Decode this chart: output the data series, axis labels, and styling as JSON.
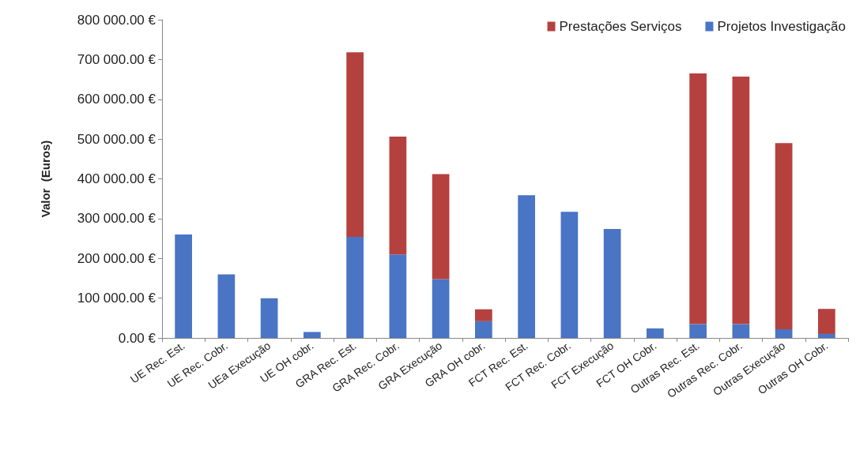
{
  "chart_data": {
    "type": "bar",
    "stacked": true,
    "ylabel": "Valor  (Euros)",
    "categories": [
      "UE Rec. Est.",
      "UE Rec. Cobr.",
      "UEa Execução",
      "UE OH cobr.",
      "GRA Rec. Est.",
      "GRA Rec. Cobr.",
      "GRA Execução",
      "GRA OH cobr.",
      "FCT Rec. Est.",
      "FCT Rec. Cobr.",
      "FCT Execução",
      "FCT OH Cobr.",
      "Outras Rec. Est.",
      "Outras Rec. Cobr.",
      "Outras Execução",
      "Outras OH Cobr."
    ],
    "series": [
      {
        "name": "Projetos Investigação",
        "color": "#4a74c4",
        "values": [
          260000,
          160000,
          100000,
          15000,
          254000,
          210000,
          148000,
          42000,
          359000,
          317000,
          274000,
          24000,
          35000,
          35000,
          22000,
          10000
        ]
      },
      {
        "name": "Prestações Serviços",
        "color": "#b5413f",
        "values": [
          0,
          0,
          0,
          0,
          464000,
          296000,
          264000,
          30000,
          0,
          0,
          0,
          0,
          630000,
          622000,
          468000,
          63000
        ]
      }
    ],
    "ylim": [
      0,
      800000
    ],
    "yticks": [
      {
        "value": 0,
        "label": "0.00 €"
      },
      {
        "value": 100000,
        "label": "100 000.00 €"
      },
      {
        "value": 200000,
        "label": "200 000.00 €"
      },
      {
        "value": 300000,
        "label": "300 000.00 €"
      },
      {
        "value": 400000,
        "label": "400 000.00 €"
      },
      {
        "value": 500000,
        "label": "500 000.00 €"
      },
      {
        "value": 600000,
        "label": "600 000.00 €"
      },
      {
        "value": 700000,
        "label": "700 000.00 €"
      },
      {
        "value": 800000,
        "label": "800 000.00 €"
      }
    ],
    "grid": false,
    "legend": "top right"
  }
}
